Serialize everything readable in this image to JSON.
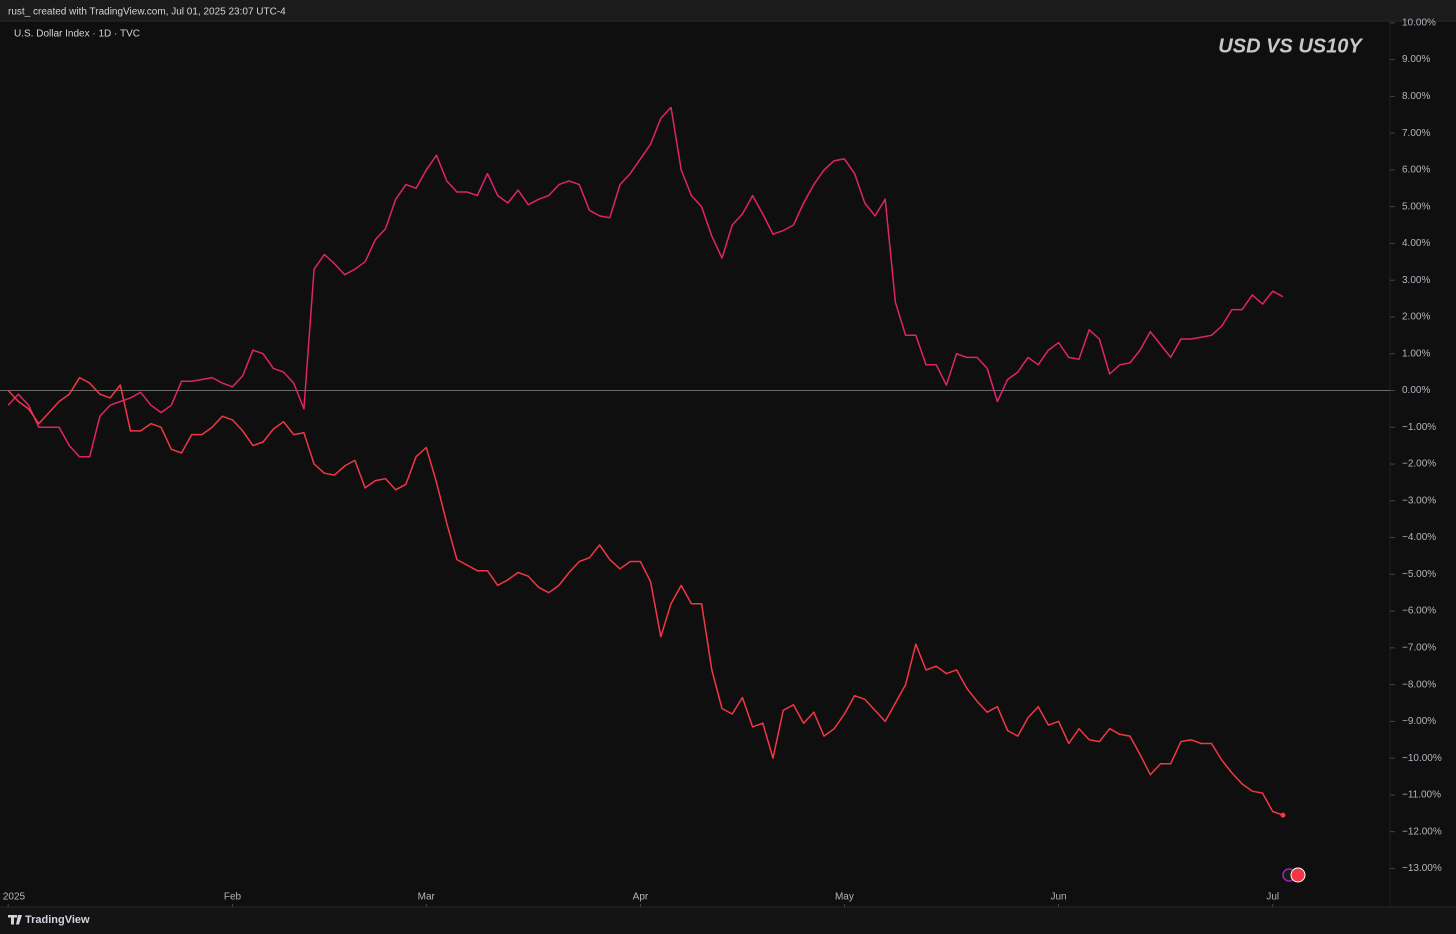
{
  "header": {
    "attribution": "rust_ created with TradingView.com, Jul 01, 2025 23:07 UTC-4"
  },
  "footer": {
    "brand": "TradingView"
  },
  "chart_data": {
    "type": "line",
    "title": "USD VS US10Y",
    "subtitle": "U.S. Dollar Index · 1D · TVC",
    "grid": false,
    "xlim": [
      -0.8,
      135.5
    ],
    "xticks": [
      {
        "value": 0,
        "label": "2025"
      },
      {
        "value": 22,
        "label": "Feb"
      },
      {
        "value": 41,
        "label": "Mar"
      },
      {
        "value": 62,
        "label": "Apr"
      },
      {
        "value": 82,
        "label": "May"
      },
      {
        "value": 103,
        "label": "Jun"
      },
      {
        "value": 124,
        "label": "Jul"
      }
    ],
    "ylim": [
      -13.45,
      10.05
    ],
    "yticks": [
      {
        "value": 10,
        "label": "10.00%"
      },
      {
        "value": 9,
        "label": "9.00%"
      },
      {
        "value": 8,
        "label": "8.00%"
      },
      {
        "value": 7,
        "label": "7.00%"
      },
      {
        "value": 6,
        "label": "6.00%"
      },
      {
        "value": 5,
        "label": "5.00%"
      },
      {
        "value": 4,
        "label": "4.00%"
      },
      {
        "value": 3,
        "label": "3.00%"
      },
      {
        "value": 2,
        "label": "2.00%"
      },
      {
        "value": 1,
        "label": "1.00%"
      },
      {
        "value": 0,
        "label": "0.00%"
      },
      {
        "value": -1,
        "label": "−1.00%"
      },
      {
        "value": -2,
        "label": "−2.00%"
      },
      {
        "value": -3,
        "label": "−3.00%"
      },
      {
        "value": -4,
        "label": "−4.00%"
      },
      {
        "value": -5,
        "label": "−5.00%"
      },
      {
        "value": -6,
        "label": "−6.00%"
      },
      {
        "value": -7,
        "label": "−7.00%"
      },
      {
        "value": -8,
        "label": "−8.00%"
      },
      {
        "value": -9,
        "label": "−9.00%"
      },
      {
        "value": -10,
        "label": "−10.00%"
      },
      {
        "value": -11,
        "label": "−11.00%"
      },
      {
        "value": -12,
        "label": "−12.00%"
      },
      {
        "value": -13,
        "label": "−13.00%"
      }
    ],
    "series": [
      {
        "color": "#e0226c",
        "values": [
          -0.4,
          -0.1,
          -0.4,
          -1.0,
          -1.0,
          -1.0,
          -1.5,
          -1.8,
          -1.8,
          -0.7,
          -0.4,
          -0.3,
          -0.2,
          -0.05,
          -0.4,
          -0.6,
          -0.4,
          0.25,
          0.25,
          0.3,
          0.35,
          0.2,
          0.1,
          0.4,
          1.1,
          1.0,
          0.6,
          0.5,
          0.2,
          -0.5,
          3.3,
          3.7,
          3.45,
          3.15,
          3.3,
          3.5,
          4.1,
          4.4,
          5.2,
          5.6,
          5.5,
          6.0,
          6.4,
          5.7,
          5.4,
          5.4,
          5.3,
          5.9,
          5.3,
          5.1,
          5.45,
          5.05,
          5.2,
          5.3,
          5.6,
          5.7,
          5.6,
          4.9,
          4.75,
          4.7,
          5.6,
          5.9,
          6.3,
          6.7,
          7.4,
          7.7,
          6.0,
          5.3,
          5.0,
          4.2,
          3.6,
          4.5,
          4.8,
          5.3,
          4.8,
          4.25,
          4.35,
          4.5,
          5.1,
          5.6,
          6.0,
          6.25,
          6.3,
          5.9,
          5.1,
          4.75,
          5.2,
          2.4,
          1.5,
          1.5,
          0.7,
          0.7,
          0.15,
          1.0,
          0.9,
          0.9,
          0.6,
          -0.3,
          0.3,
          0.5,
          0.9,
          0.7,
          1.1,
          1.3,
          0.9,
          0.85,
          1.65,
          1.4,
          0.45,
          0.7,
          0.75,
          1.1,
          1.6,
          1.25,
          0.9,
          1.4,
          1.4,
          1.45,
          1.5,
          1.75,
          2.2,
          2.2,
          2.6,
          2.35,
          2.7,
          2.55
        ]
      },
      {
        "color": "#f23645",
        "values": [
          0.0,
          -0.3,
          -0.5,
          -0.9,
          -0.6,
          -0.3,
          -0.1,
          0.35,
          0.2,
          -0.1,
          -0.2,
          0.15,
          -1.1,
          -1.1,
          -0.9,
          -1.0,
          -1.6,
          -1.7,
          -1.2,
          -1.2,
          -1.0,
          -0.7,
          -0.8,
          -1.1,
          -1.5,
          -1.4,
          -1.05,
          -0.85,
          -1.2,
          -1.15,
          -2.0,
          -2.25,
          -2.3,
          -2.05,
          -1.9,
          -2.65,
          -2.45,
          -2.4,
          -2.7,
          -2.55,
          -1.8,
          -1.55,
          -2.5,
          -3.6,
          -4.6,
          -4.75,
          -4.9,
          -4.9,
          -5.3,
          -5.15,
          -4.95,
          -5.05,
          -5.35,
          -5.5,
          -5.3,
          -4.95,
          -4.65,
          -4.55,
          -4.2,
          -4.6,
          -4.85,
          -4.65,
          -4.65,
          -5.2,
          -6.7,
          -5.8,
          -5.3,
          -5.8,
          -5.8,
          -7.6,
          -8.65,
          -8.8,
          -8.35,
          -9.15,
          -9.05,
          -10.0,
          -8.7,
          -8.55,
          -9.05,
          -8.75,
          -9.4,
          -9.2,
          -8.8,
          -8.3,
          -8.4,
          -8.7,
          -9.0,
          -8.5,
          -8.0,
          -6.9,
          -7.6,
          -7.5,
          -7.7,
          -7.6,
          -8.1,
          -8.45,
          -8.75,
          -8.6,
          -9.25,
          -9.4,
          -8.9,
          -8.6,
          -9.1,
          -9.0,
          -9.6,
          -9.2,
          -9.5,
          -9.55,
          -9.2,
          -9.35,
          -9.4,
          -9.9,
          -10.45,
          -10.15,
          -10.15,
          -9.55,
          -9.5,
          -9.6,
          -9.6,
          -10.05,
          -10.4,
          -10.7,
          -10.9,
          -10.95,
          -11.45,
          -11.55
        ]
      }
    ]
  }
}
